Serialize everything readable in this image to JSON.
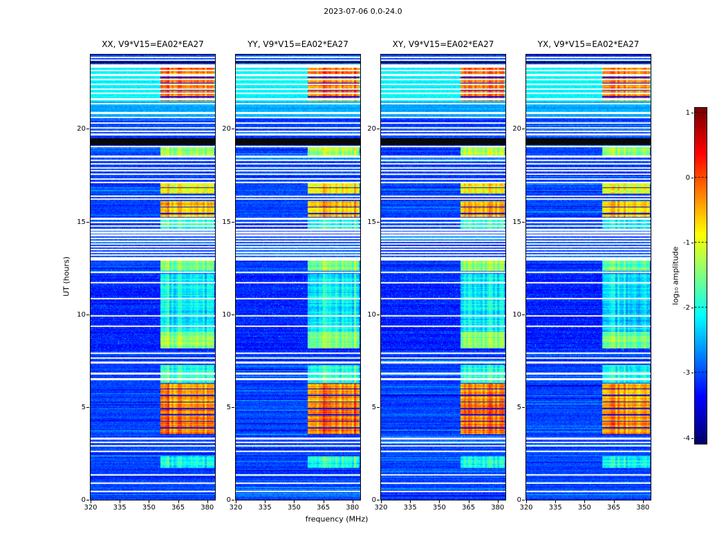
{
  "title": "2023-07-06 0.0-24.0",
  "chart_data": {
    "type": "heatmap",
    "title": "2023-07-06 0.0-24.0",
    "xlabel": "frequency (MHz)",
    "ylabel": "UT (hours)",
    "x_range": [
      320,
      384
    ],
    "y_range": [
      0,
      24
    ],
    "x_ticks": [
      320,
      335,
      350,
      365,
      380
    ],
    "y_ticks": [
      0,
      5,
      10,
      15,
      20
    ],
    "colormap": "jet",
    "grid": false,
    "colorbar": {
      "label": "log₁₀ amplitude",
      "ticks": [
        1,
        0,
        -1,
        -2,
        -3,
        -4
      ],
      "vmin": -4.1,
      "vmax": 1.06
    },
    "panels": [
      {
        "id": "XX",
        "title": "XX, V9*V15=EA02*EA27",
        "rfi_freq_start": 356
      },
      {
        "id": "YY",
        "title": "YY, V9*V15=EA02*EA27",
        "rfi_freq_start": 357
      },
      {
        "id": "XY",
        "title": "XY, V9*V15=EA02*EA27",
        "rfi_freq_start": 361
      },
      {
        "id": "YX",
        "title": "YX, V9*V15=EA02*EA27",
        "rfi_freq_start": 359
      }
    ],
    "features": {
      "background_level": -3.05,
      "flagged_white_times": [
        23.85,
        23.7,
        23.45,
        23.35,
        23.15,
        22.9,
        22.65,
        22.4,
        22.15,
        21.9,
        21.6,
        21.35,
        20.85,
        20.6,
        20.3,
        20.05,
        19.85,
        19.7,
        19.03,
        18.5,
        18.3,
        18.1,
        17.9,
        17.75,
        17.55,
        17.3,
        17.1,
        16.35,
        16.2,
        15.15,
        14.95,
        14.75,
        14.55,
        14.4,
        14.25,
        14.1,
        13.95,
        13.8,
        13.65,
        13.5,
        13.35,
        13.2,
        13.05,
        12.95,
        12.25,
        11.7,
        10.85,
        9.9,
        9.35,
        7.9,
        7.65,
        7.4,
        6.8,
        6.5,
        3.3,
        3.1,
        2.9,
        2.6,
        1.35,
        0.9,
        0.45
      ],
      "black_bands": [
        [
          19.12,
          19.5
        ],
        [
          23.54,
          23.62
        ]
      ],
      "bright_fullwidth_bands": [
        [
          20.6,
          21.45,
          -2.55
        ],
        [
          21.45,
          23.45,
          -2.15
        ]
      ],
      "dark_noisy_band": [
        8.0,
        12.2
      ],
      "rfi_blocks": [
        {
          "t0": 21.5,
          "t1": 23.35,
          "level": -0.35,
          "grid": true
        },
        {
          "t0": 18.55,
          "t1": 19.0,
          "level": -1.5,
          "grid": false
        },
        {
          "t0": 16.5,
          "t1": 17.05,
          "level": -1.1,
          "grid": true
        },
        {
          "t0": 15.25,
          "t1": 16.1,
          "level": -0.75,
          "grid": true
        },
        {
          "t0": 14.55,
          "t1": 15.2,
          "level": -2.1,
          "grid": false
        },
        {
          "t0": 12.35,
          "t1": 12.9,
          "level": -1.7,
          "grid": false
        },
        {
          "t0": 9.05,
          "t1": 12.2,
          "level": -2.35,
          "grid": false
        },
        {
          "t0": 8.15,
          "t1": 9.05,
          "level": -1.6,
          "grid": false
        },
        {
          "t0": 6.3,
          "t1": 7.25,
          "level": -2.1,
          "grid": false
        },
        {
          "t0": 5.15,
          "t1": 6.25,
          "level": -0.5,
          "grid": true
        },
        {
          "t0": 3.5,
          "t1": 5.15,
          "level": -0.4,
          "grid": true
        },
        {
          "t0": 1.7,
          "t1": 2.35,
          "level": -2.2,
          "grid": false
        }
      ]
    }
  }
}
